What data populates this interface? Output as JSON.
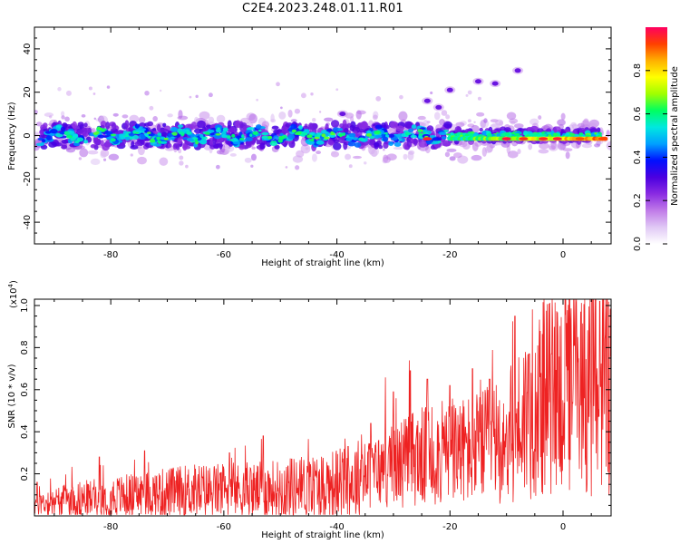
{
  "title": "C2E4.2023.248.01.11.R01",
  "chart_data": [
    {
      "type": "heatmap",
      "xlabel": "Height of straight line (km)",
      "ylabel": "Frequency (Hz)",
      "xlim": [
        -93.5,
        8.5
      ],
      "ylim": [
        -50,
        50
      ],
      "xticks": [
        -80,
        -60,
        -40,
        -20,
        0
      ],
      "yticks": [
        -40,
        -20,
        0,
        20,
        40
      ],
      "colorbar": {
        "label": "Normalized spectral amplitude",
        "range": [
          0,
          1
        ],
        "ticks": [
          "0.0",
          "0.2",
          "0.4",
          "0.6",
          "0.8"
        ],
        "colormap": [
          "#ffffff",
          "#e0c8f5",
          "#c07be8",
          "#8a2be2",
          "#4b00e0",
          "#0010ff",
          "#00a0ff",
          "#00e8e0",
          "#00ff60",
          "#a0ff00",
          "#ffff00",
          "#ffb000",
          "#ff4000",
          "#ff0060"
        ]
      },
      "description_band": "Main signal band centered near 0 Hz spanning the full height range; amplitude rises toward 0 km",
      "isolated_features": [
        {
          "x": -24,
          "y": 16
        },
        {
          "x": -20,
          "y": 21
        },
        {
          "x": -8,
          "y": 30
        },
        {
          "x": -15,
          "y": 25
        },
        {
          "x": -39,
          "y": 10
        },
        {
          "x": -22,
          "y": 13
        },
        {
          "x": -12,
          "y": 24
        }
      ]
    },
    {
      "type": "line",
      "xlabel": "Height of straight line (km)",
      "ylabel": "SNR (10 * v/v)",
      "yscale_label": "(x10",
      "yscale_exp": "4",
      "yscale_close": ")",
      "xlim": [
        -93.5,
        8.5
      ],
      "ylim": [
        0,
        1.03
      ],
      "xticks": [
        -80,
        -60,
        -40,
        -20,
        0
      ],
      "yticks": [
        "0.2",
        "0.4",
        "0.6",
        "0.8",
        "1.0"
      ],
      "color": "#ee2222",
      "trend": [
        {
          "x": -93.5,
          "y": 0.06
        },
        {
          "x": -85,
          "y": 0.08
        },
        {
          "x": -75,
          "y": 0.1
        },
        {
          "x": -65,
          "y": 0.12
        },
        {
          "x": -55,
          "y": 0.12
        },
        {
          "x": -45,
          "y": 0.14
        },
        {
          "x": -38,
          "y": 0.16
        },
        {
          "x": -32,
          "y": 0.22
        },
        {
          "x": -26,
          "y": 0.28
        },
        {
          "x": -20,
          "y": 0.3
        },
        {
          "x": -15,
          "y": 0.32
        },
        {
          "x": -10,
          "y": 0.36
        },
        {
          "x": -6,
          "y": 0.5
        },
        {
          "x": -2,
          "y": 0.58
        },
        {
          "x": 2,
          "y": 0.6
        },
        {
          "x": 5,
          "y": 0.62
        },
        {
          "x": 8.5,
          "y": 0.62
        }
      ],
      "spikes": [
        {
          "x": -93,
          "y": 0.16
        },
        {
          "x": -89.5,
          "y": 0.09
        },
        {
          "x": -82,
          "y": 0.28
        },
        {
          "x": -74,
          "y": 0.31
        },
        {
          "x": -59,
          "y": 0.3
        },
        {
          "x": -53,
          "y": 0.38
        },
        {
          "x": -48,
          "y": 0.27
        },
        {
          "x": -38,
          "y": 0.33
        },
        {
          "x": -34,
          "y": 0.44
        },
        {
          "x": -30,
          "y": 0.59
        },
        {
          "x": -27,
          "y": 0.69
        },
        {
          "x": -24,
          "y": 0.65
        },
        {
          "x": -20,
          "y": 0.62
        },
        {
          "x": -16,
          "y": 0.7
        },
        {
          "x": -13,
          "y": 0.65
        },
        {
          "x": -8.5,
          "y": 0.95
        },
        {
          "x": -6,
          "y": 0.77
        },
        {
          "x": -2,
          "y": 0.77
        },
        {
          "x": 2,
          "y": 0.81
        },
        {
          "x": 6.5,
          "y": 1.02
        },
        {
          "x": 8.5,
          "y": 0.76
        }
      ]
    }
  ]
}
